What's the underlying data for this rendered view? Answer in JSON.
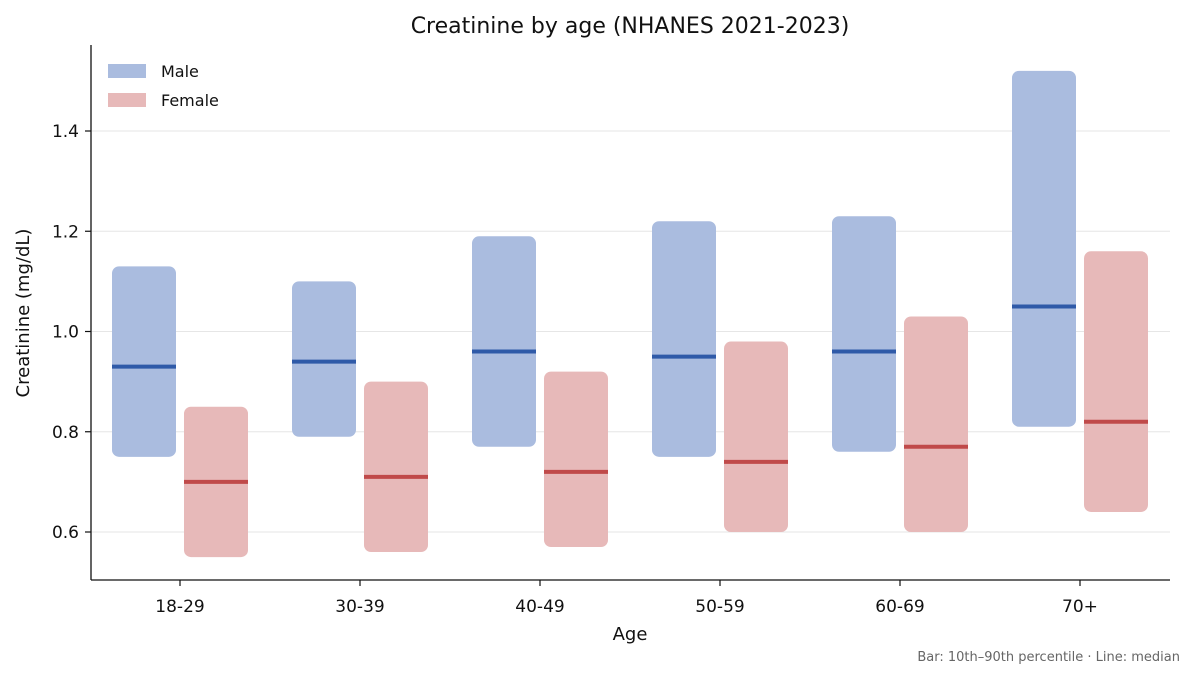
{
  "chart_data": {
    "type": "floating-bar",
    "title": "Creatinine by age (NHANES 2021-2023)",
    "xlabel": "Age",
    "ylabel": "Creatinine (mg/dL)",
    "categories": [
      "18-29",
      "30-39",
      "40-49",
      "50-59",
      "60-69",
      "70+"
    ],
    "ylim": [
      0.5,
      1.57
    ],
    "yticks": [
      0.6,
      0.8,
      1.0,
      1.2,
      1.4
    ],
    "ytick_labels": [
      "0.6",
      "0.8",
      "1.0",
      "1.2",
      "1.4"
    ],
    "grid": "horizontal",
    "legend_position": "top-left",
    "series": [
      {
        "name": "Male",
        "fill_color": "#aabcdf",
        "median_color": "#2f5aa8",
        "p10": [
          0.75,
          0.79,
          0.77,
          0.75,
          0.76,
          0.81
        ],
        "p90": [
          1.13,
          1.1,
          1.19,
          1.22,
          1.23,
          1.52
        ],
        "median": [
          0.93,
          0.94,
          0.96,
          0.95,
          0.96,
          1.05
        ]
      },
      {
        "name": "Female",
        "fill_color": "#e7b9b9",
        "median_color": "#c04a4a",
        "p10": [
          0.55,
          0.56,
          0.57,
          0.6,
          0.6,
          0.64
        ],
        "p90": [
          0.85,
          0.9,
          0.92,
          0.98,
          1.03,
          1.16
        ],
        "median": [
          0.7,
          0.71,
          0.72,
          0.74,
          0.77,
          0.82
        ]
      }
    ],
    "footnote": "Bar: 10th–90th percentile  ·  Line: median"
  }
}
